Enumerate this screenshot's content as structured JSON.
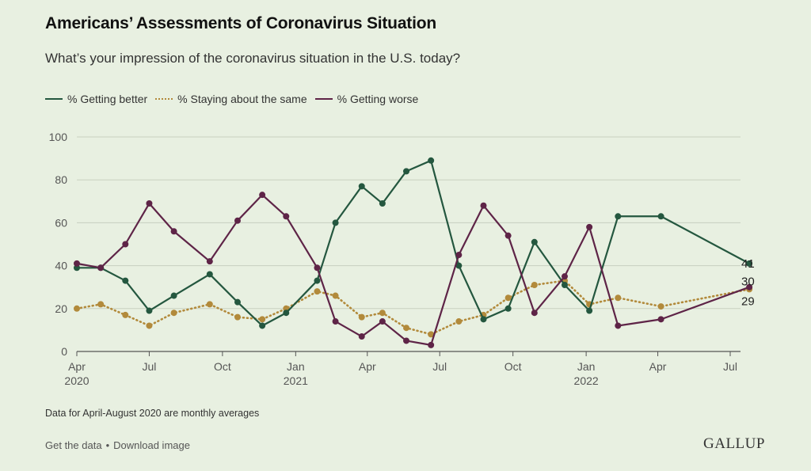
{
  "header": {
    "title": "Americans’ Assessments of Coronavirus Situation",
    "subtitle": "What’s your impression of the coronavirus situation in the U.S. today?"
  },
  "legend": {
    "items": [
      {
        "label": "% Getting better",
        "color": "#24573f",
        "style": "solid"
      },
      {
        "label": "% Staying about the same",
        "color": "#b28a3b",
        "style": "dotted"
      },
      {
        "label": "% Getting worse",
        "color": "#5e2447",
        "style": "solid"
      }
    ]
  },
  "footnote": "Data for April-August 2020 are monthly averages",
  "footer": {
    "get_data": "Get the data",
    "separator": "•",
    "download": "Download image",
    "logo": "GALLUP"
  },
  "chart_data": {
    "type": "line",
    "ylim": [
      0,
      100
    ],
    "yticks": [
      0,
      20,
      40,
      60,
      80,
      100
    ],
    "xlim": [
      "2020-04",
      "2022-07"
    ],
    "xticks": [
      {
        "date": "2020-04",
        "label": "Apr",
        "year": "2020"
      },
      {
        "date": "2020-07",
        "label": "Jul",
        "year": ""
      },
      {
        "date": "2020-10",
        "label": "Oct",
        "year": ""
      },
      {
        "date": "2021-01",
        "label": "Jan",
        "year": "2021"
      },
      {
        "date": "2021-04",
        "label": "Apr",
        "year": ""
      },
      {
        "date": "2021-07",
        "label": "Jul",
        "year": ""
      },
      {
        "date": "2021-10",
        "label": "Oct",
        "year": ""
      },
      {
        "date": "2022-01",
        "label": "Jan",
        "year": "2022"
      },
      {
        "date": "2022-04",
        "label": "Apr",
        "year": ""
      },
      {
        "date": "2022-07",
        "label": "Jul",
        "year": ""
      }
    ],
    "x": [
      "2020-04-01",
      "2020-05-01",
      "2020-06-01",
      "2020-07-01",
      "2020-08-01",
      "2020-09-15",
      "2020-10-20",
      "2020-11-20",
      "2020-12-20",
      "2021-01-28",
      "2021-02-20",
      "2021-03-25",
      "2021-04-20",
      "2021-05-20",
      "2021-06-20",
      "2021-07-25",
      "2021-08-25",
      "2021-09-25",
      "2021-10-28",
      "2021-12-05",
      "2022-01-05",
      "2022-02-10",
      "2022-04-05",
      "2022-07-25"
    ],
    "series": [
      {
        "name": "% Getting better",
        "color": "#24573f",
        "style": "solid",
        "values": [
          39,
          39,
          33,
          19,
          26,
          36,
          23,
          12,
          18,
          33,
          60,
          77,
          69,
          84,
          89,
          40,
          15,
          20,
          51,
          31,
          19,
          63,
          63,
          41
        ],
        "end_label": "41"
      },
      {
        "name": "% Staying about the same",
        "color": "#b28a3b",
        "style": "dotted",
        "values": [
          20,
          22,
          17,
          12,
          18,
          22,
          16,
          15,
          20,
          28,
          26,
          16,
          18,
          11,
          8,
          14,
          17,
          25,
          31,
          33,
          22,
          25,
          21,
          29
        ],
        "end_label": "29"
      },
      {
        "name": "% Getting worse",
        "color": "#5e2447",
        "style": "solid",
        "values": [
          41,
          39,
          50,
          69,
          56,
          42,
          61,
          73,
          63,
          39,
          14,
          7,
          14,
          5,
          3,
          45,
          68,
          54,
          18,
          35,
          58,
          12,
          15,
          30
        ],
        "end_label": "30"
      }
    ]
  }
}
